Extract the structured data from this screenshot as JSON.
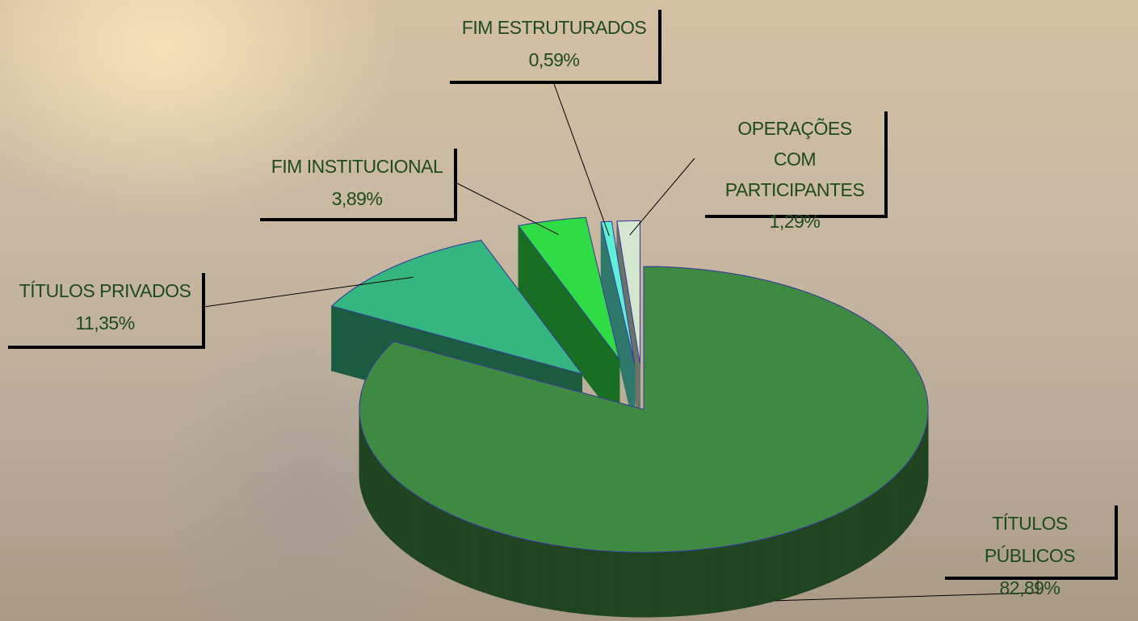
{
  "chart_data": {
    "type": "pie",
    "categories": [
      "TÍTULOS PÚBLICOS",
      "TÍTULOS PRIVADOS",
      "FIM INSTITUCIONAL",
      "FIM ESTRUTURADOS",
      "OPERAÇÕES COM PARTICIPANTES"
    ],
    "values": [
      82.89,
      11.35,
      3.89,
      0.59,
      1.29
    ],
    "value_labels": [
      "82,89%",
      "11,35%",
      "3,89%",
      "0,59%",
      "1,29%"
    ],
    "colors": [
      "#3f8a42",
      "#35b57f",
      "#2fdc45",
      "#5ef0d6",
      "#d3e6cf"
    ]
  }
}
